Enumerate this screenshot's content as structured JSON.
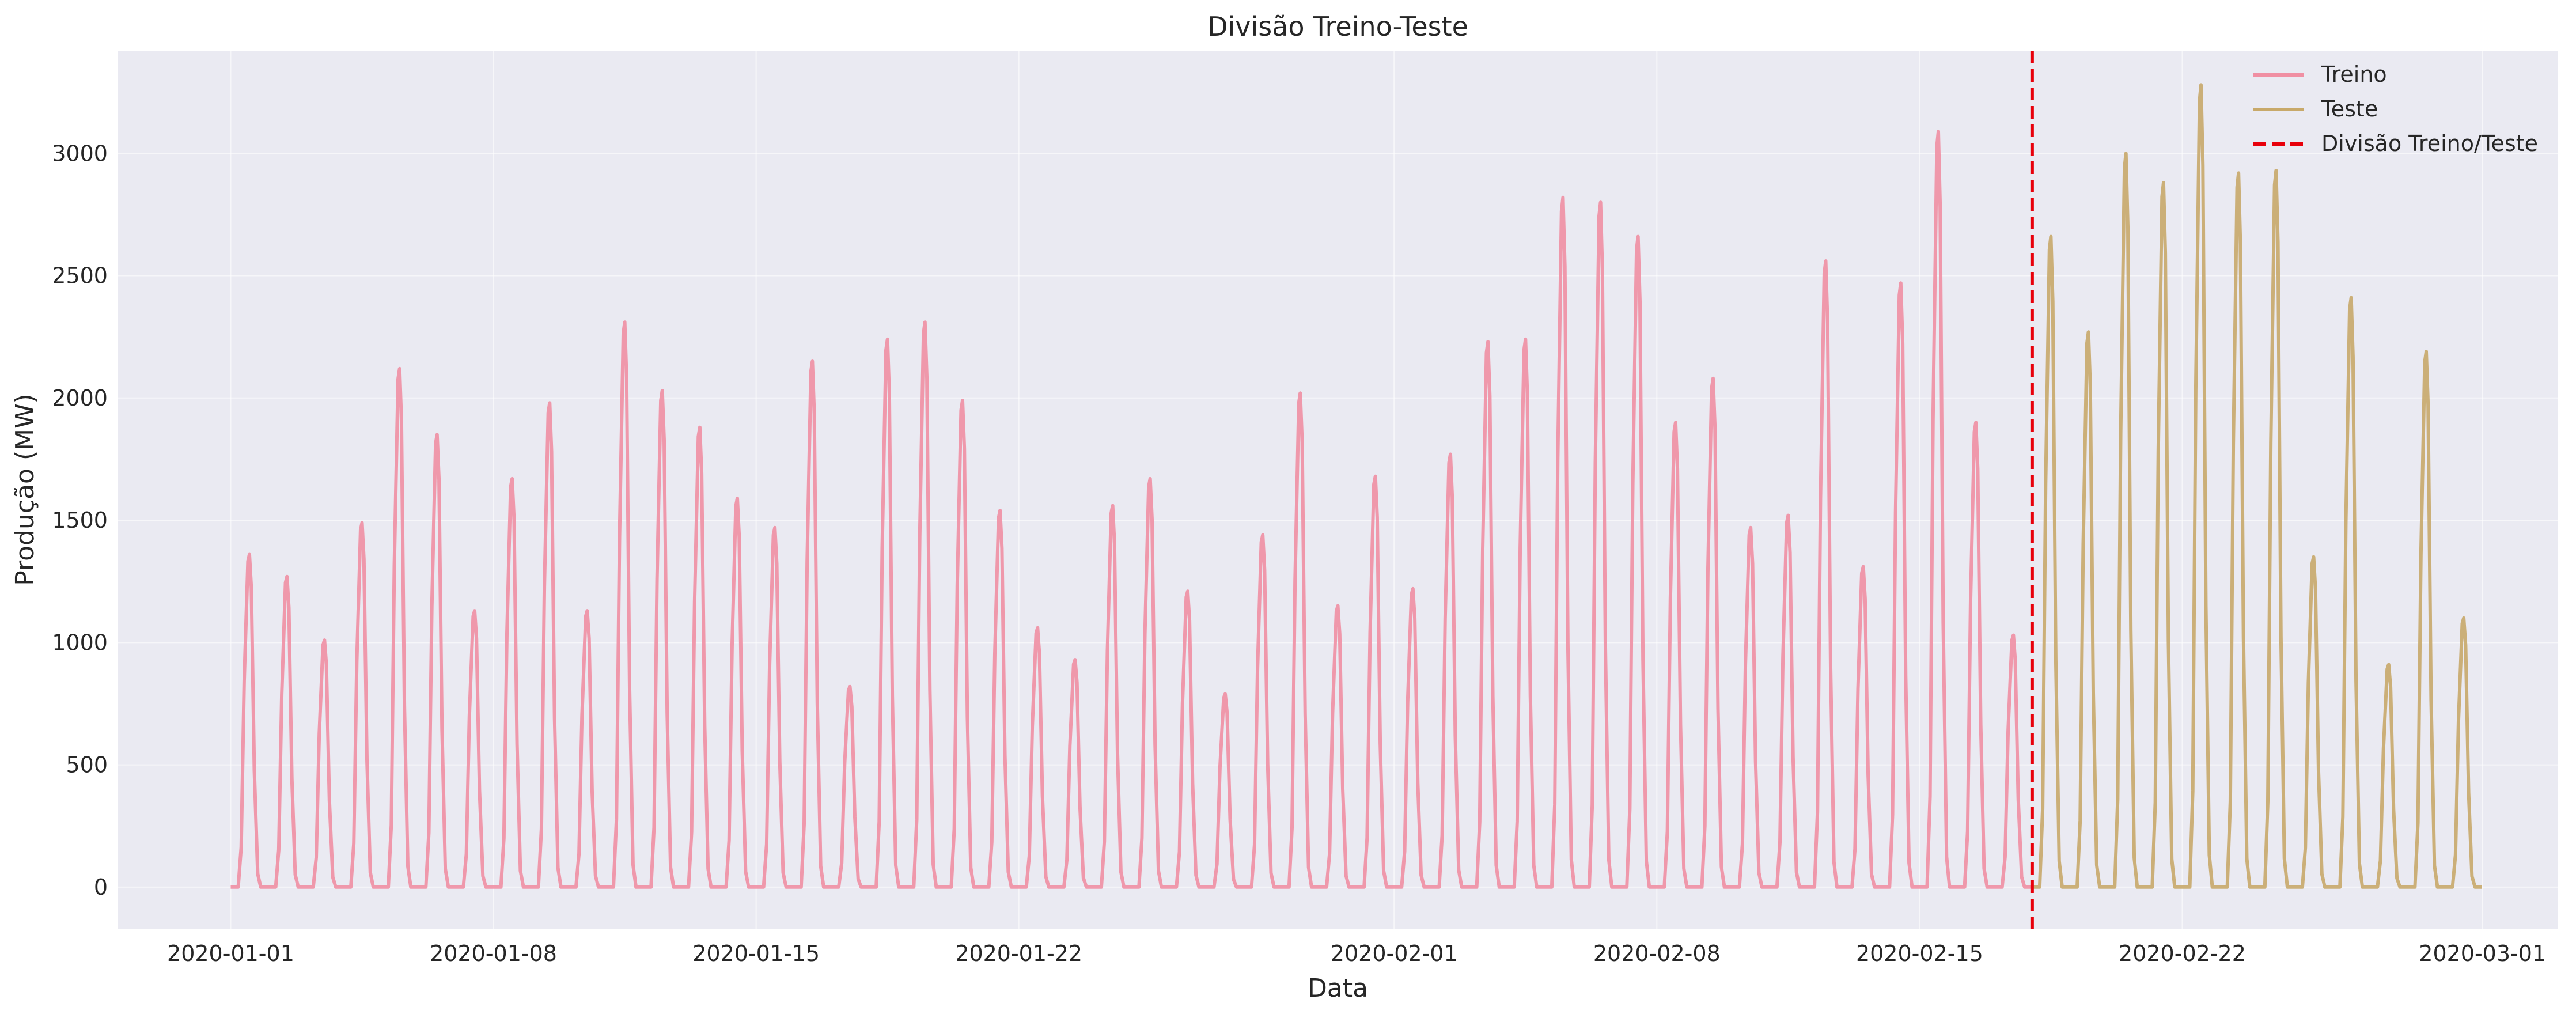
{
  "chart_data": {
    "type": "line",
    "title": "Divisão Treino-Teste",
    "xlabel": "Data",
    "ylabel": "Produção (MW)",
    "xlim": [
      "2019-12-29",
      "2020-03-03"
    ],
    "ylim": [
      -170,
      3420
    ],
    "x_ticks": [
      "2020-01-01",
      "2020-01-08",
      "2020-01-15",
      "2020-01-22",
      "2020-02-01",
      "2020-02-08",
      "2020-02-15",
      "2020-02-22",
      "2020-03-01"
    ],
    "y_ticks": [
      0,
      500,
      1000,
      1500,
      2000,
      2500,
      3000
    ],
    "grid": true,
    "legend_position": "top-right",
    "split_date": "2020-02-18",
    "colors": {
      "train": "#F08FA3",
      "test": "#C8A96A",
      "split": "#E8000B",
      "background": "#EAEAF2"
    },
    "series": [
      {
        "name": "Treino",
        "x": [
          "2020-01-01",
          "2020-01-02",
          "2020-01-03",
          "2020-01-04",
          "2020-01-05",
          "2020-01-06",
          "2020-01-07",
          "2020-01-08",
          "2020-01-09",
          "2020-01-10",
          "2020-01-11",
          "2020-01-12",
          "2020-01-13",
          "2020-01-14",
          "2020-01-15",
          "2020-01-16",
          "2020-01-17",
          "2020-01-18",
          "2020-01-19",
          "2020-01-20",
          "2020-01-21",
          "2020-01-22",
          "2020-01-23",
          "2020-01-24",
          "2020-01-25",
          "2020-01-26",
          "2020-01-27",
          "2020-01-28",
          "2020-01-29",
          "2020-01-30",
          "2020-01-31",
          "2020-02-01",
          "2020-02-02",
          "2020-02-03",
          "2020-02-04",
          "2020-02-05",
          "2020-02-06",
          "2020-02-07",
          "2020-02-08",
          "2020-02-09",
          "2020-02-10",
          "2020-02-11",
          "2020-02-12",
          "2020-02-13",
          "2020-02-14",
          "2020-02-15",
          "2020-02-16",
          "2020-02-17"
        ],
        "values": [
          1360,
          1270,
          1010,
          1490,
          2120,
          1850,
          1130,
          1670,
          1980,
          1130,
          2310,
          2030,
          1880,
          1590,
          1470,
          2150,
          820,
          2240,
          2310,
          1990,
          1540,
          1060,
          930,
          1560,
          1670,
          1210,
          790,
          1440,
          2020,
          1150,
          1680,
          1220,
          1770,
          2230,
          2240,
          2820,
          2800,
          2660,
          1900,
          2080,
          1470,
          1520,
          2560,
          1310,
          2470,
          3090,
          1900,
          1030
        ]
      },
      {
        "name": "Teste",
        "x": [
          "2020-02-18",
          "2020-02-19",
          "2020-02-20",
          "2020-02-21",
          "2020-02-22",
          "2020-02-23",
          "2020-02-24",
          "2020-02-25",
          "2020-02-26",
          "2020-02-27",
          "2020-02-28",
          "2020-02-29"
        ],
        "values": [
          2660,
          2270,
          3000,
          2880,
          3280,
          2920,
          2930,
          1350,
          2410,
          910,
          2190,
          1100
        ]
      },
      {
        "name": "Divisão Treino/Teste",
        "type": "vline",
        "x": "2020-02-18"
      }
    ]
  }
}
